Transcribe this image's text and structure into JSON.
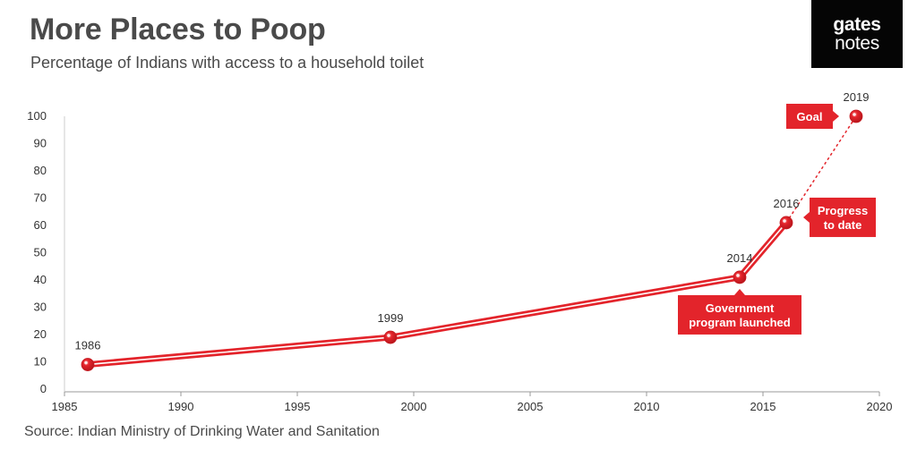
{
  "header": {
    "title": "More Places to Poop",
    "subtitle": "Percentage of Indians with access to a household toilet"
  },
  "logo": {
    "line1": "gates",
    "line2": "notes"
  },
  "footer": {
    "source": "Source: Indian Ministry of Drinking Water and Sanitation"
  },
  "colors": {
    "accent": "#e3242b",
    "text": "#4a4a4a",
    "axis": "#999999",
    "logo_bg": "#050505"
  },
  "chart_data": {
    "type": "line",
    "title": "More Places to Poop",
    "subtitle": "Percentage of Indians with access to a household toilet",
    "xlabel": "",
    "ylabel": "",
    "xlim": [
      1985,
      2020
    ],
    "ylim": [
      0,
      100
    ],
    "x_ticks": [
      1985,
      1990,
      1995,
      2000,
      2005,
      2010,
      2015,
      2020
    ],
    "y_ticks": [
      0,
      10,
      20,
      30,
      40,
      50,
      60,
      70,
      80,
      90,
      100
    ],
    "grid": false,
    "series": [
      {
        "name": "Progress to date",
        "style": "solid-double",
        "points": [
          {
            "x": 1986,
            "y": 9,
            "label": "1986"
          },
          {
            "x": 1999,
            "y": 19,
            "label": "1999"
          },
          {
            "x": 2014,
            "y": 41,
            "label": "2014"
          },
          {
            "x": 2016,
            "y": 61,
            "label": "2016"
          }
        ]
      },
      {
        "name": "Goal",
        "style": "dotted",
        "points": [
          {
            "x": 2016,
            "y": 61,
            "label": ""
          },
          {
            "x": 2019,
            "y": 100,
            "label": "2019"
          }
        ]
      }
    ],
    "annotations": [
      {
        "id": "government",
        "lines": [
          "Government",
          "program launched"
        ],
        "x": 2014,
        "y": 41
      },
      {
        "id": "progress",
        "lines": [
          "Progress",
          "to date"
        ],
        "x": 2016,
        "y": 61
      },
      {
        "id": "goal",
        "lines": [
          "Goal"
        ],
        "x": 2019,
        "y": 100
      }
    ]
  }
}
